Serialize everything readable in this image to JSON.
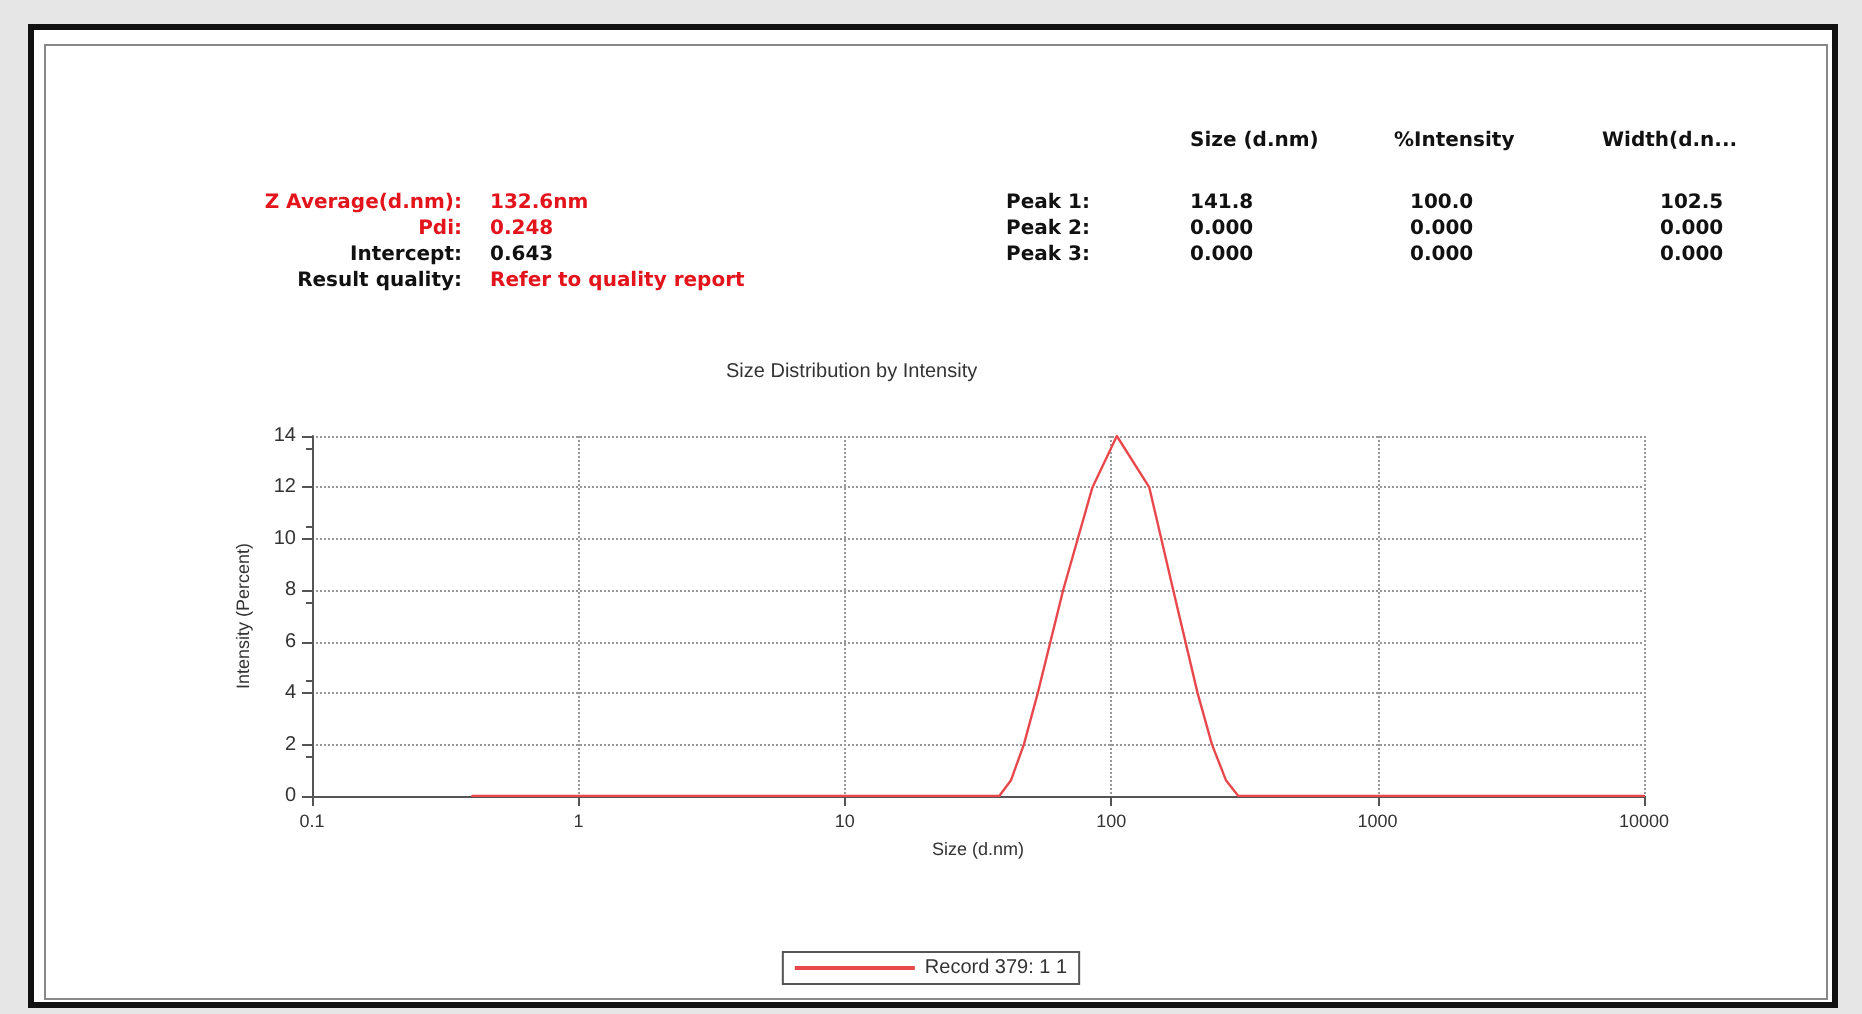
{
  "chart_data": {
    "type": "line",
    "title": "Size Distribution by Intensity",
    "xlabel": "Size (d.nm)",
    "ylabel": "Intensity (Percent)",
    "annotations": [
      "Size (d.nm)",
      "%Intensity",
      "Width(d.n...",
      "Z Average(d.nm):",
      "132.6nm",
      "Pdi:",
      "0.248",
      "Intercept:",
      "0.643",
      "Result quality:",
      "Refer to quality report",
      "Peak 1:",
      "141.8",
      "100.0",
      "102.5",
      "Peak 2:",
      "0.000",
      "0.000",
      "0.000",
      "Peak 3:",
      "0.000",
      "0.000",
      "0.000"
    ],
    "series": [
      {
        "name": "Record 379: 1 1",
        "color": "#e8474c",
        "x": [
          0.4,
          1,
          10,
          38,
          42,
          47,
          53,
          66,
          85,
          105,
          139,
          171,
          211,
          239,
          270,
          300,
          1000,
          10000
        ],
        "values": [
          0,
          0,
          0,
          0,
          0.6,
          2,
          4,
          8,
          12,
          14,
          12,
          8,
          4,
          2,
          0.6,
          0,
          0,
          0
        ]
      }
    ],
    "log": "x",
    "xlim": [
      0.1,
      10000
    ],
    "xticks": [
      0.1,
      1,
      10,
      100,
      1000,
      10000
    ],
    "ylim": [
      0,
      14
    ],
    "yticks": [
      0,
      2,
      4,
      6,
      8,
      10,
      12,
      14
    ],
    "grid": true,
    "legend": "bottom",
    "line_style": "solid",
    "marker": "none"
  }
}
